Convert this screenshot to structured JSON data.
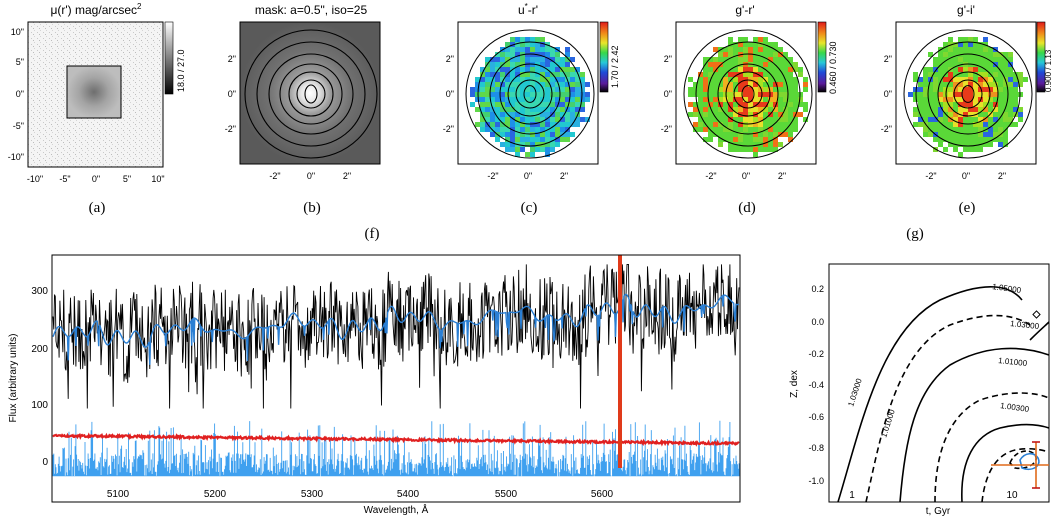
{
  "captions": [
    "(a)",
    "(b)",
    "(c)",
    "(d)",
    "(e)",
    "(f)",
    "(g)"
  ],
  "maps": [
    {
      "title": "μ(r') mag/arcsec²",
      "title_main": "μ(r') mag/arcsec",
      "title_sup": "2",
      "colorbar": "18.0 / 27.0",
      "yticks": [
        "10\"",
        "5\"",
        "0\"",
        "-5\"",
        "-10\""
      ],
      "xticks": [
        "-10\"",
        "-5\"",
        "0\"",
        "5\"",
        "10\""
      ]
    },
    {
      "title": "mask: a=0.5\", iso=25",
      "yticks": [
        "2\"",
        "0\"",
        "-2\""
      ],
      "xticks": [
        "-2\"",
        "0\"",
        "2\""
      ]
    },
    {
      "title": "u*-r'",
      "title_main": "u",
      "title_sup": "*",
      "title_rest": "-r'",
      "colorbar": "1.70 / 2.42",
      "yticks": [
        "2\"",
        "0\"",
        "-2\""
      ],
      "xticks": [
        "-2\"",
        "0\"",
        "2\""
      ]
    },
    {
      "title": "g'-r'",
      "colorbar": "0.460 / 0.730",
      "yticks": [
        "2\"",
        "0\"",
        "-2\""
      ],
      "xticks": [
        "-2\"",
        "0\"",
        "2\""
      ]
    },
    {
      "title": "g'-i'",
      "colorbar": "0.900 / 1.13",
      "yticks": [
        "2\"",
        "0\"",
        "-2\""
      ],
      "xticks": [
        "-2\"",
        "0\"",
        "2\""
      ]
    }
  ],
  "spectrum": {
    "ylabel": "Flux (arbitrary units)",
    "xlabel": "Wavelength, Å",
    "yticks": [
      "300",
      "200",
      "100",
      "0"
    ],
    "xticks": [
      "5100",
      "5200",
      "5300",
      "5400",
      "5500",
      "5600"
    ],
    "colors": {
      "data": "#000000",
      "model": "#2a7fd4",
      "residual": "#3fa0ef",
      "error": "#e02020",
      "line": "#e03a1a"
    }
  },
  "contour": {
    "ylabel": "Z, dex",
    "xlabel": "t, Gyr",
    "yticks": [
      "0.2",
      "0.0",
      "-0.2",
      "-0.4",
      "-0.6",
      "-0.8",
      "-1.0"
    ],
    "xticks": [
      "1",
      "10"
    ],
    "labels": [
      "1.05000",
      "1.03000",
      "1.01000",
      "1.00300",
      "1.03000",
      "1.01000"
    ]
  }
}
